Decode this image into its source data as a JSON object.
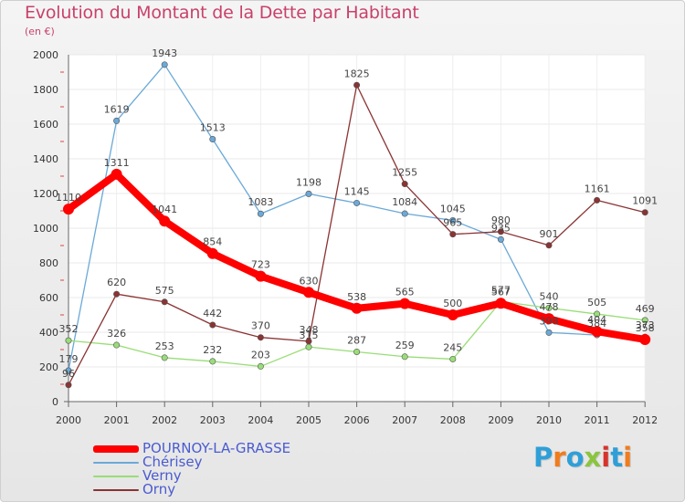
{
  "title": "Evolution du Montant de la Dette par Habitant",
  "subtitle": "(en €)",
  "logo": {
    "text": "Proxiti",
    "letter_colors": [
      "#2f9fd8",
      "#f07c1e",
      "#2f9fd8",
      "#8bc53f",
      "#d6332c",
      "#2f9fd8",
      "#f07c1e"
    ]
  },
  "chart_data": {
    "type": "line",
    "title": "Evolution du Montant de la Dette par Habitant",
    "subtitle": "(en €)",
    "xlabel": "",
    "ylabel": "",
    "ylim": [
      0,
      2000
    ],
    "yticks": [
      0,
      200,
      400,
      600,
      800,
      1000,
      1200,
      1400,
      1600,
      1800,
      2000
    ],
    "grid": true,
    "legend_position": "bottom-left",
    "categories": [
      "2000",
      "2001",
      "2002",
      "2003",
      "2004",
      "2005",
      "2006",
      "2007",
      "2008",
      "2009",
      "2010",
      "2011",
      "2012"
    ],
    "series": [
      {
        "name": "POURNOY-LA-GRASSE",
        "color": "#ff0000",
        "values": [
          1110,
          1311,
          1041,
          854,
          723,
          630,
          538,
          565,
          500,
          567,
          478,
          404,
          358
        ],
        "labels": [
          "1110",
          "1311",
          "1041",
          "854",
          "723",
          "630",
          "538",
          "565",
          "500",
          "567",
          "478",
          "404",
          "358"
        ]
      },
      {
        "name": "Chérisey",
        "color": "#6aa9d8",
        "values": [
          179,
          1619,
          1943,
          1513,
          1083,
          1198,
          1145,
          1084,
          1045,
          935,
          398,
          384,
          373
        ],
        "labels": [
          "179",
          "1619",
          "1943",
          "1513",
          "1083",
          "1198",
          "1145",
          "1084",
          "1045",
          "935",
          "398",
          "384",
          "373"
        ]
      },
      {
        "name": "Verny",
        "color": "#99dd77",
        "values": [
          352,
          326,
          253,
          232,
          203,
          315,
          287,
          259,
          245,
          577,
          540,
          505,
          469
        ],
        "labels": [
          "352",
          "326",
          "253",
          "232",
          "203",
          "315",
          "287",
          "259",
          "245",
          "577",
          "540",
          "505",
          "469"
        ]
      },
      {
        "name": "Orny",
        "color": "#8b3333",
        "values": [
          96,
          620,
          575,
          442,
          370,
          348,
          1825,
          1255,
          965,
          980,
          901,
          1161,
          1091
        ],
        "labels": [
          "96",
          "620",
          "575",
          "442",
          "370",
          "348",
          "1825",
          "1255",
          "965",
          "980",
          "901",
          "1161",
          "1091"
        ]
      }
    ]
  }
}
